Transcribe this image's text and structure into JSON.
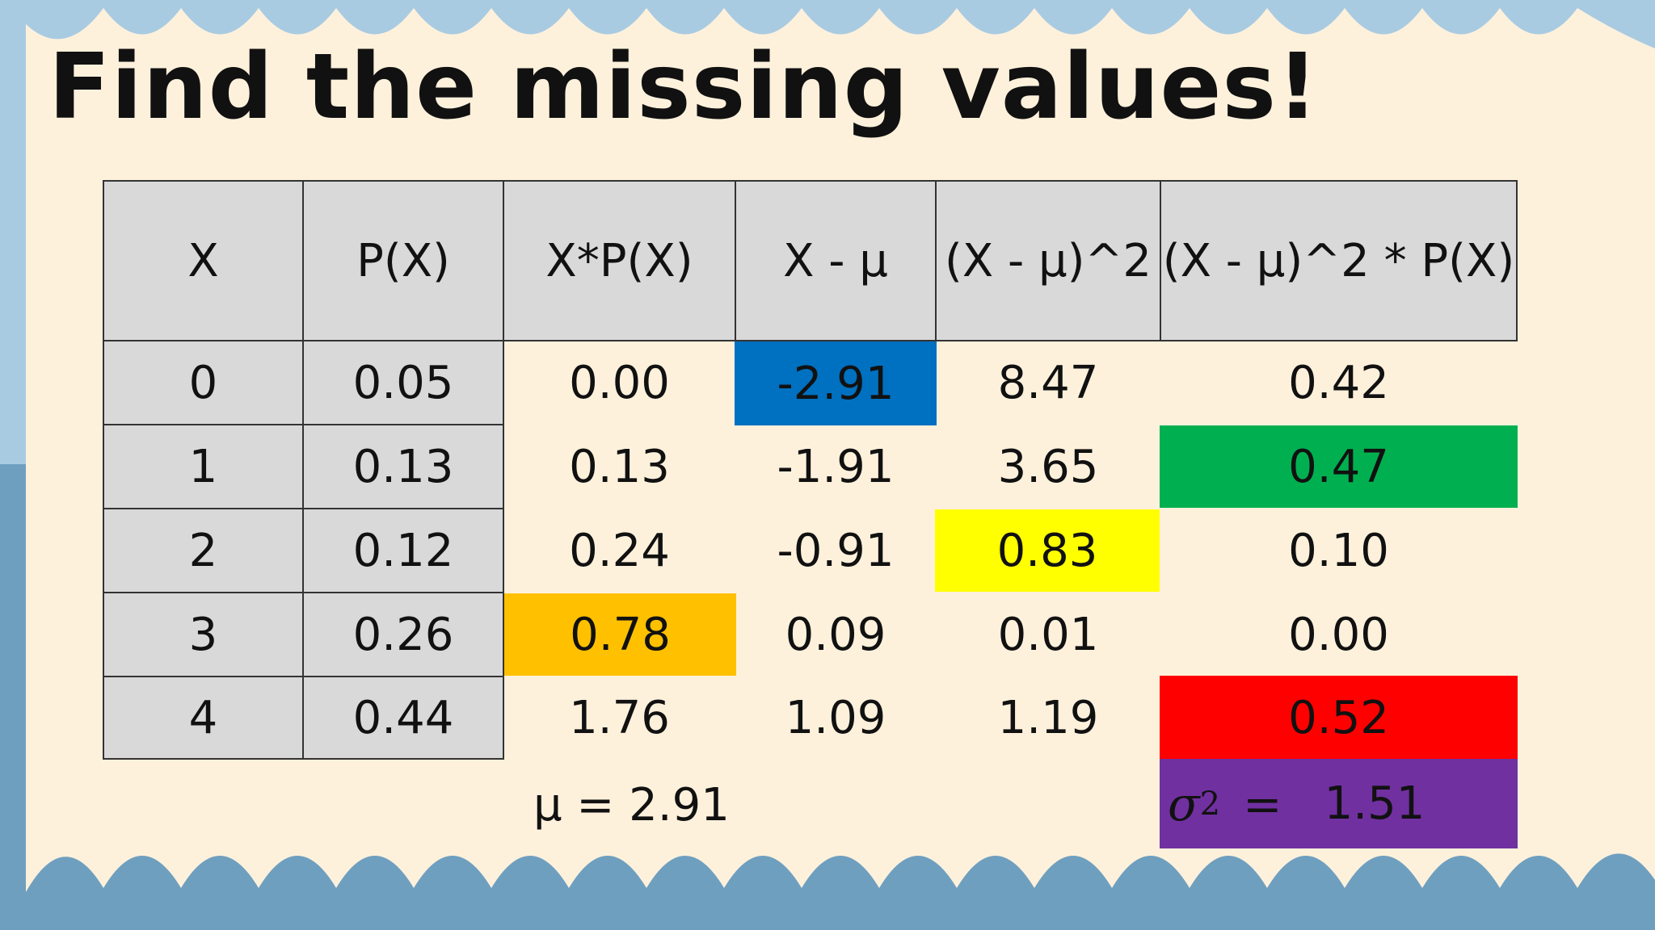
{
  "title": "Find the missing values!",
  "colors": {
    "background": "#fef1dc",
    "wave": "#a9cbe2",
    "wave_dark": "#6f9fbf",
    "header_grey": "#d9d9d9",
    "blue": "#0070c0",
    "green": "#00b050",
    "yellow": "#ffff00",
    "orange": "#ffc000",
    "red": "#ff0000",
    "purple": "#7030a0"
  },
  "table": {
    "headers": [
      "X",
      "P(X)",
      "X*P(X)",
      "X - μ",
      "(X - μ)^2",
      "(X - μ)^2 * P(X)"
    ],
    "rows": [
      [
        "0",
        "0.05",
        "0.00",
        "-2.91",
        "8.47",
        "0.42"
      ],
      [
        "1",
        "0.13",
        "0.13",
        "-1.91",
        "3.65",
        "0.47"
      ],
      [
        "2",
        "0.12",
        "0.24",
        "-0.91",
        "0.83",
        "0.10"
      ],
      [
        "3",
        "0.26",
        "0.78",
        "0.09",
        "0.01",
        "0.00"
      ],
      [
        "4",
        "0.44",
        "1.76",
        "1.09",
        "1.19",
        "0.52"
      ]
    ]
  },
  "mean_label": "μ = 2.91",
  "variance": {
    "symbol": "σ",
    "exponent": "2",
    "equals": "=",
    "value": "1.51"
  }
}
